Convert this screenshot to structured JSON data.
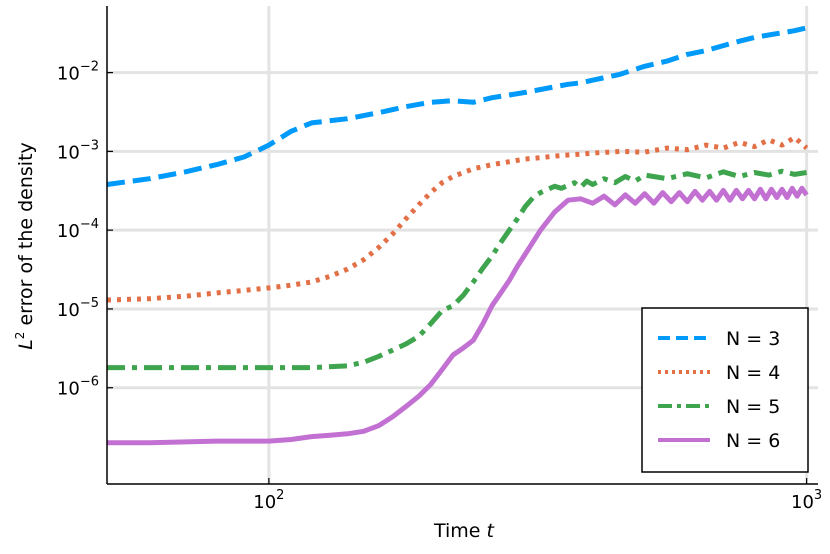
{
  "chart_data": {
    "type": "line",
    "title": "",
    "xlabel": {
      "text": "Time ",
      "var": "t"
    },
    "ylabel": {
      "var": "L",
      "sup": "2",
      "text": " error of the density"
    },
    "x_scale": "log",
    "y_scale": "log",
    "xlim": [
      50,
      1050
    ],
    "ylim": [
      6e-08,
      0.07
    ],
    "x_ticks": [
      {
        "value": 100,
        "base": "10",
        "exp": "2"
      },
      {
        "value": 1000,
        "base": "10",
        "exp": "3"
      }
    ],
    "y_ticks": [
      {
        "value": 0.01,
        "base": "10",
        "exp": "−2"
      },
      {
        "value": 0.001,
        "base": "10",
        "exp": "−3"
      },
      {
        "value": 0.0001,
        "base": "10",
        "exp": "−4"
      },
      {
        "value": 1e-05,
        "base": "10",
        "exp": "−5"
      },
      {
        "value": 1e-06,
        "base": "10",
        "exp": "−6"
      }
    ],
    "grid": true,
    "legend_position": "bottom-right",
    "series": [
      {
        "name": "N = 3",
        "color": "#009AFA",
        "dash": "dashed",
        "x": [
          50,
          60,
          70,
          80,
          90,
          100,
          110,
          120,
          140,
          160,
          180,
          200,
          220,
          240,
          260,
          280,
          300,
          320,
          340,
          360,
          380,
          400,
          450,
          500,
          550,
          600,
          650,
          700,
          750,
          800,
          850,
          900,
          950,
          1000
        ],
        "y": [
          0.00038,
          0.00045,
          0.00055,
          0.00068,
          0.00085,
          0.0012,
          0.0018,
          0.0023,
          0.0026,
          0.0031,
          0.0037,
          0.0042,
          0.0044,
          0.0042,
          0.0048,
          0.0052,
          0.0056,
          0.0061,
          0.0066,
          0.0071,
          0.0074,
          0.008,
          0.0095,
          0.012,
          0.014,
          0.017,
          0.019,
          0.022,
          0.025,
          0.028,
          0.03,
          0.032,
          0.034,
          0.037
        ]
      },
      {
        "name": "N = 4",
        "color": "#E26F46",
        "dash": "dotted",
        "x": [
          50,
          60,
          70,
          80,
          90,
          100,
          110,
          120,
          130,
          140,
          150,
          160,
          170,
          180,
          190,
          200,
          210,
          220,
          240,
          260,
          280,
          300,
          320,
          340,
          360,
          380,
          400,
          450,
          500,
          550,
          600,
          650,
          700,
          750,
          800,
          850,
          900,
          950,
          1000
        ],
        "y": [
          1.3e-05,
          1.35e-05,
          1.45e-05,
          1.6e-05,
          1.72e-05,
          1.85e-05,
          2e-05,
          2.2e-05,
          2.6e-05,
          3.2e-05,
          4.2e-05,
          6e-05,
          9e-05,
          0.00014,
          0.00021,
          0.0003,
          0.0004,
          0.00048,
          0.0006,
          0.00068,
          0.00074,
          0.0008,
          0.00083,
          0.00087,
          0.0009,
          0.00092,
          0.00095,
          0.001,
          0.00098,
          0.0011,
          0.00105,
          0.0012,
          0.0011,
          0.0013,
          0.00115,
          0.0014,
          0.0012,
          0.0015,
          0.0011
        ]
      },
      {
        "name": "N = 5",
        "color": "#3EA44E",
        "dash": "dashdot",
        "x": [
          50,
          60,
          80,
          100,
          120,
          140,
          150,
          160,
          170,
          180,
          190,
          200,
          210,
          220,
          230,
          240,
          250,
          260,
          270,
          280,
          290,
          300,
          310,
          320,
          330,
          340,
          350,
          360,
          370,
          380,
          390,
          400,
          420,
          440,
          460,
          480,
          500,
          550,
          600,
          650,
          700,
          750,
          800,
          850,
          900,
          950,
          1000
        ],
        "y": [
          1.8e-06,
          1.8e-06,
          1.8e-06,
          1.8e-06,
          1.8e-06,
          1.9e-06,
          2.1e-06,
          2.5e-06,
          3e-06,
          3.6e-06,
          4.5e-06,
          6.5e-06,
          9.5e-06,
          1.1e-05,
          1.5e-05,
          2.2e-05,
          3.3e-05,
          4.7e-05,
          7e-05,
          0.0001,
          0.00014,
          0.0002,
          0.00026,
          0.0003,
          0.00033,
          0.00036,
          0.00034,
          0.00037,
          0.0004,
          0.00035,
          0.00042,
          0.00038,
          0.00045,
          0.0004,
          0.00048,
          0.00042,
          0.0005,
          0.00045,
          0.00052,
          0.00046,
          0.00055,
          0.00048,
          0.00054,
          0.0005,
          0.00056,
          0.00051,
          0.00054
        ]
      },
      {
        "name": "N = 6",
        "color": "#C271D2",
        "dash": "solid",
        "x": [
          50,
          60,
          80,
          100,
          110,
          120,
          130,
          140,
          150,
          160,
          170,
          180,
          190,
          200,
          210,
          220,
          230,
          240,
          250,
          260,
          270,
          280,
          290,
          300,
          320,
          340,
          360,
          380,
          400,
          420,
          440,
          460,
          480,
          500,
          520,
          540,
          560,
          580,
          600,
          620,
          640,
          660,
          680,
          700,
          720,
          740,
          760,
          780,
          800,
          820,
          840,
          860,
          880,
          900,
          920,
          940,
          960,
          980,
          1000
        ],
        "y": [
          2e-07,
          2e-07,
          2.1e-07,
          2.1e-07,
          2.2e-07,
          2.4e-07,
          2.5e-07,
          2.6e-07,
          2.8e-07,
          3.3e-07,
          4.3e-07,
          5.8e-07,
          7.8e-07,
          1.1e-06,
          1.7e-06,
          2.6e-06,
          3.2e-06,
          4e-06,
          6.5e-06,
          1.1e-05,
          1.6e-05,
          2.3e-05,
          3.5e-05,
          5e-05,
          0.0001,
          0.00017,
          0.00024,
          0.00025,
          0.00022,
          0.00027,
          0.00021,
          0.00028,
          0.00022,
          0.00029,
          0.00022,
          0.0003,
          0.00023,
          0.0003,
          0.00023,
          0.00031,
          0.00024,
          0.00031,
          0.00024,
          0.00032,
          0.00024,
          0.00032,
          0.00025,
          0.00032,
          0.00025,
          0.00033,
          0.00025,
          0.00033,
          0.00026,
          0.00033,
          0.00026,
          0.00034,
          0.00027,
          0.00034,
          0.00028
        ]
      }
    ]
  }
}
